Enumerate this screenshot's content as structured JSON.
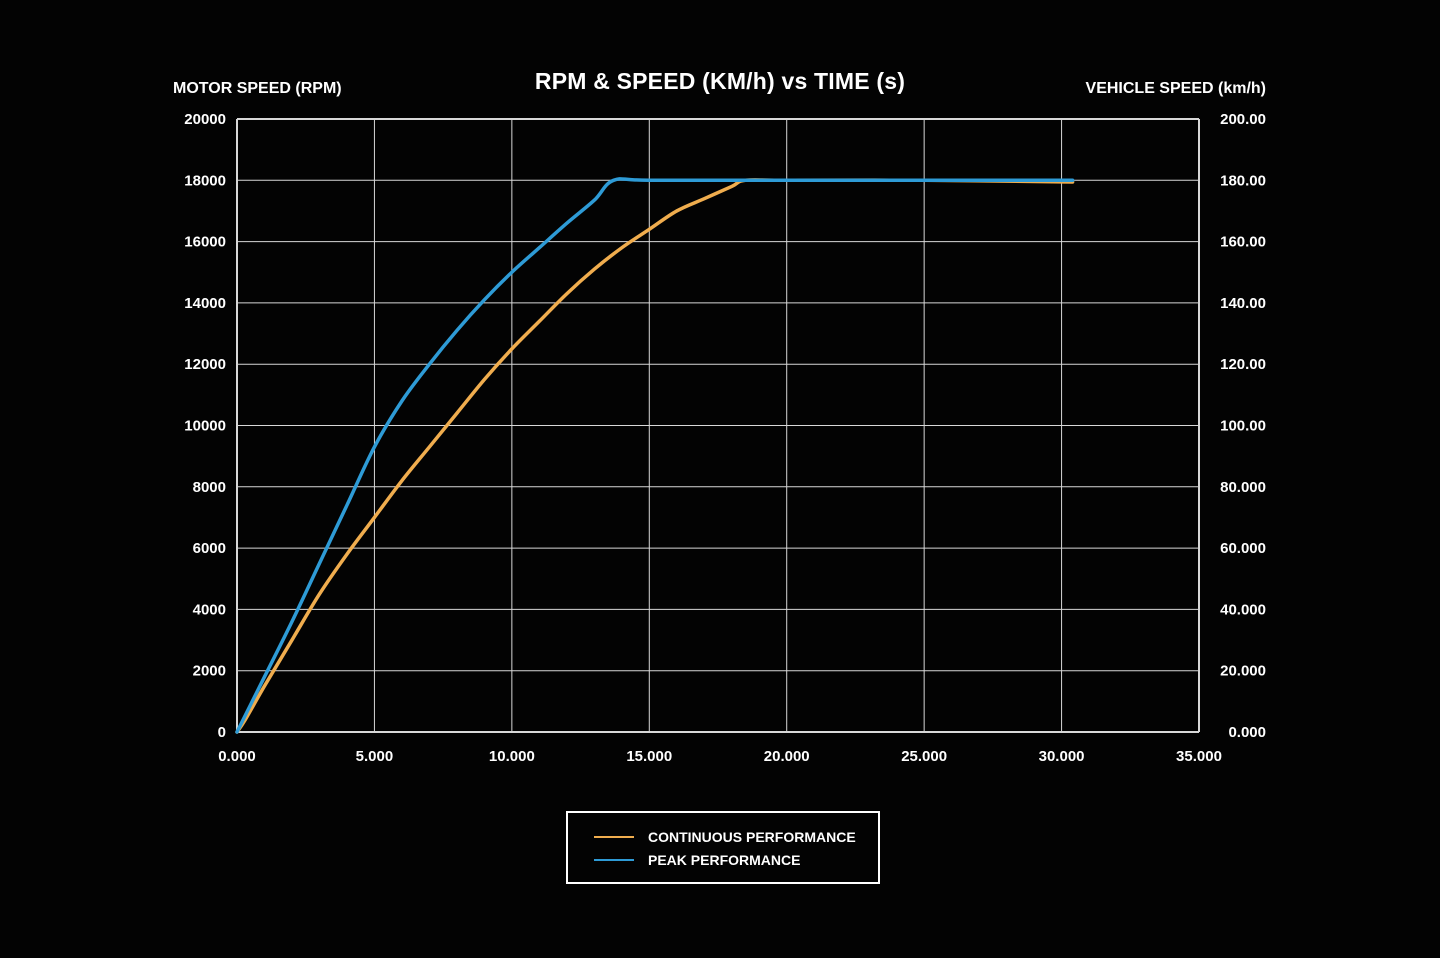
{
  "chart_data": {
    "type": "line",
    "title": "RPM & SPEED (KM/h) vs TIME (s)",
    "ylabel": "MOTOR SPEED (RPM)",
    "y2label": "VEHICLE SPEED (km/h)",
    "xlabel": "",
    "xlim": [
      0,
      35
    ],
    "ylim": [
      0,
      20000
    ],
    "y2lim": [
      0,
      200
    ],
    "grid": true,
    "legend_position": "bottom-center",
    "x_ticks": [
      "0.000",
      "5.000",
      "10.000",
      "15.000",
      "20.000",
      "25.000",
      "30.000",
      "35.000"
    ],
    "y_ticks": [
      "0",
      "2000",
      "4000",
      "6000",
      "8000",
      "10000",
      "12000",
      "14000",
      "16000",
      "18000",
      "20000"
    ],
    "y2_ticks": [
      "0.000",
      "20.000",
      "40.000",
      "60.000",
      "80.000",
      "100.00",
      "120.00",
      "140.00",
      "160.00",
      "180.00",
      "200.00"
    ],
    "series": [
      {
        "name": "CONTINUOUS PERFORMANCE",
        "color": "#f0ad4e",
        "x": [
          0,
          0.3,
          1,
          2,
          3,
          4,
          5,
          6,
          7,
          8,
          9,
          10,
          11,
          12,
          13,
          14,
          15,
          16,
          17,
          18,
          18.5,
          20,
          25,
          30,
          30.1
        ],
        "y": [
          0,
          400,
          1500,
          3000,
          4500,
          5800,
          7000,
          8200,
          9300,
          10400,
          11500,
          12500,
          13400,
          14300,
          15100,
          15800,
          16400,
          17000,
          17400,
          17800,
          18000,
          18000,
          18000,
          17950,
          17950
        ]
      },
      {
        "name": "PEAK PERFORMANCE",
        "color": "#2e9bd6",
        "x": [
          0,
          1,
          2,
          3,
          4,
          5,
          6,
          7,
          8,
          9,
          10,
          11,
          12,
          13,
          13.7,
          15,
          20,
          25,
          30,
          30.1
        ],
        "y": [
          0,
          1800,
          3600,
          5500,
          7400,
          9300,
          10800,
          12000,
          13100,
          14100,
          15000,
          15800,
          16600,
          17350,
          18000,
          18000,
          18000,
          18000,
          18000,
          18000
        ]
      }
    ]
  }
}
